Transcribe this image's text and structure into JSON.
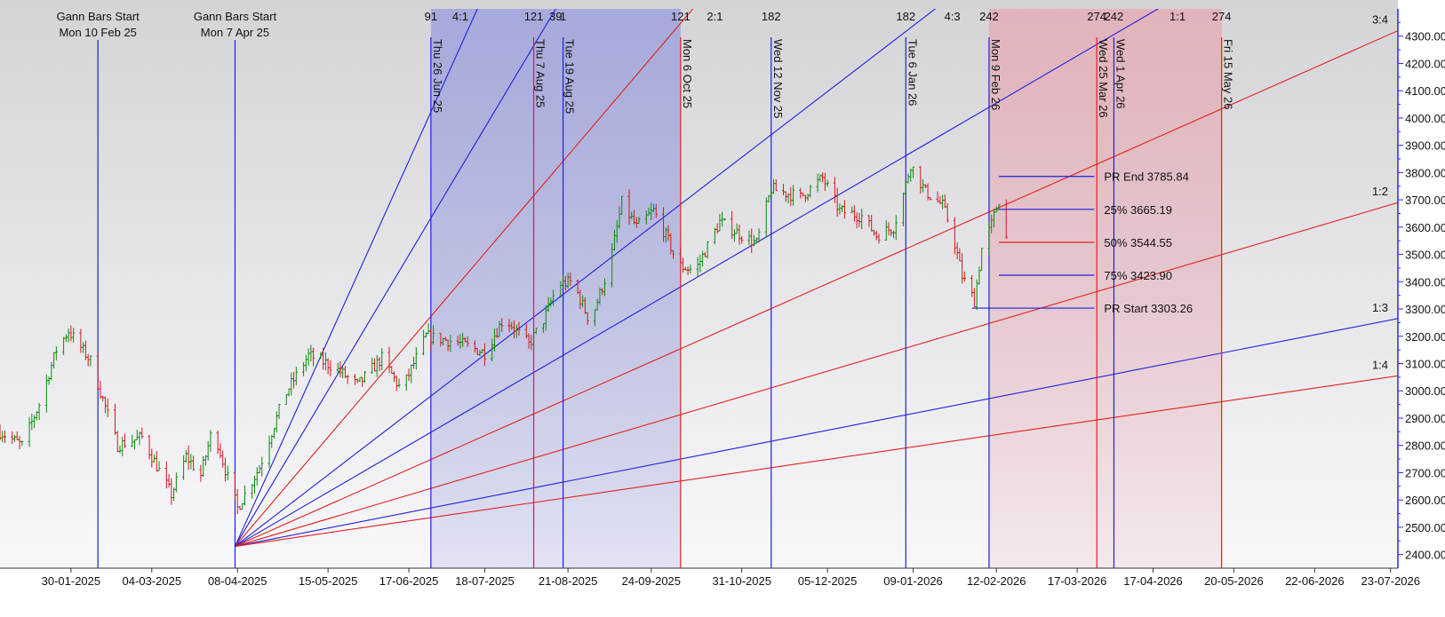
{
  "colors": {
    "background_top": "#d4d4d8",
    "background_bottom": "#f8f8fb",
    "blue": "#1f1fdc",
    "red": "#e0201c",
    "blue_band": "#9ea2dc",
    "red_band": "#e6aab4",
    "candle_up": "#0c8a0c",
    "candle_down": "#d01818",
    "axis": "#2b2bd6",
    "text": "#111111"
  },
  "chart_data": {
    "type": "candlestick",
    "title": "",
    "y_axis": {
      "position": "right",
      "min": 2350,
      "max": 4400,
      "ticks": [
        "2400.00",
        "2500.00",
        "2600.00",
        "2700.00",
        "2800.00",
        "2900.00",
        "3000.00",
        "3100.00",
        "3200.00",
        "3300.00",
        "3400.00",
        "3500.00",
        "3600.00",
        "3700.00",
        "3800.00",
        "3900.00",
        "4000.00",
        "4100.00",
        "4200.00",
        "4300.00"
      ]
    },
    "x_axis": {
      "start": "2025-01-01",
      "end": "2026-07-26",
      "tick_labels": [
        {
          "date": "2025-01-30",
          "label": "30-01-2025"
        },
        {
          "date": "2025-03-04",
          "label": "04-03-2025"
        },
        {
          "date": "2025-04-08",
          "label": "08-04-2025"
        },
        {
          "date": "2025-05-15",
          "label": "15-05-2025"
        },
        {
          "date": "2025-06-17",
          "label": "17-06-2025"
        },
        {
          "date": "2025-07-18",
          "label": "18-07-2025"
        },
        {
          "date": "2025-08-21",
          "label": "21-08-2025"
        },
        {
          "date": "2025-09-24",
          "label": "24-09-2025"
        },
        {
          "date": "2025-10-31",
          "label": "31-10-2025"
        },
        {
          "date": "2025-12-05",
          "label": "05-12-2025"
        },
        {
          "date": "2026-01-09",
          "label": "09-01-2026"
        },
        {
          "date": "2026-02-12",
          "label": "12-02-2026"
        },
        {
          "date": "2026-03-17",
          "label": "17-03-2026"
        },
        {
          "date": "2026-04-17",
          "label": "17-04-2026"
        },
        {
          "date": "2026-05-20",
          "label": "20-05-2026"
        },
        {
          "date": "2026-06-22",
          "label": "22-06-2026"
        },
        {
          "date": "2026-07-23",
          "label": "23-07-2026"
        }
      ]
    },
    "price_path": [
      {
        "date": "2025-01-01",
        "price": 2850
      },
      {
        "date": "2025-01-10",
        "price": 2800
      },
      {
        "date": "2025-01-17",
        "price": 2950
      },
      {
        "date": "2025-01-24",
        "price": 3150
      },
      {
        "date": "2025-01-29",
        "price": 3220
      },
      {
        "date": "2025-02-07",
        "price": 3110
      },
      {
        "date": "2025-02-18",
        "price": 2800
      },
      {
        "date": "2025-02-28",
        "price": 2830
      },
      {
        "date": "2025-03-12",
        "price": 2620
      },
      {
        "date": "2025-03-18",
        "price": 2760
      },
      {
        "date": "2025-03-24",
        "price": 2690
      },
      {
        "date": "2025-03-29",
        "price": 2870
      },
      {
        "date": "2025-04-04",
        "price": 2680
      },
      {
        "date": "2025-04-08",
        "price": 2570
      },
      {
        "date": "2025-04-17",
        "price": 2720
      },
      {
        "date": "2025-04-27",
        "price": 2980
      },
      {
        "date": "2025-05-07",
        "price": 3130
      },
      {
        "date": "2025-05-17",
        "price": 3090
      },
      {
        "date": "2025-05-27",
        "price": 3020
      },
      {
        "date": "2025-06-06",
        "price": 3120
      },
      {
        "date": "2025-06-14",
        "price": 3000
      },
      {
        "date": "2025-06-24",
        "price": 3200
      },
      {
        "date": "2025-07-06",
        "price": 3180
      },
      {
        "date": "2025-07-18",
        "price": 3140
      },
      {
        "date": "2025-07-26",
        "price": 3270
      },
      {
        "date": "2025-08-05",
        "price": 3170
      },
      {
        "date": "2025-08-11",
        "price": 3260
      },
      {
        "date": "2025-08-17",
        "price": 3390
      },
      {
        "date": "2025-08-23",
        "price": 3400
      },
      {
        "date": "2025-08-30",
        "price": 3250
      },
      {
        "date": "2025-09-07",
        "price": 3460
      },
      {
        "date": "2025-09-12",
        "price": 3690
      },
      {
        "date": "2025-09-18",
        "price": 3600
      },
      {
        "date": "2025-09-25",
        "price": 3660
      },
      {
        "date": "2025-10-01",
        "price": 3550
      },
      {
        "date": "2025-10-05",
        "price": 3460
      },
      {
        "date": "2025-10-12",
        "price": 3440
      },
      {
        "date": "2025-10-22",
        "price": 3620
      },
      {
        "date": "2025-10-31",
        "price": 3570
      },
      {
        "date": "2025-11-06",
        "price": 3540
      },
      {
        "date": "2025-11-12",
        "price": 3740
      },
      {
        "date": "2025-11-24",
        "price": 3710
      },
      {
        "date": "2025-12-03",
        "price": 3780
      },
      {
        "date": "2025-12-10",
        "price": 3660
      },
      {
        "date": "2025-12-19",
        "price": 3640
      },
      {
        "date": "2025-12-25",
        "price": 3570
      },
      {
        "date": "2026-01-01",
        "price": 3600
      },
      {
        "date": "2026-01-05",
        "price": 3720
      },
      {
        "date": "2026-01-08",
        "price": 3830
      },
      {
        "date": "2026-01-14",
        "price": 3730
      },
      {
        "date": "2026-01-21",
        "price": 3680
      },
      {
        "date": "2026-01-25",
        "price": 3580
      },
      {
        "date": "2026-01-29",
        "price": 3420
      },
      {
        "date": "2026-02-03",
        "price": 3330
      },
      {
        "date": "2026-02-06",
        "price": 3520
      },
      {
        "date": "2026-02-10",
        "price": 3610
      },
      {
        "date": "2026-02-13",
        "price": 3700
      },
      {
        "date": "2026-02-16",
        "price": 3560
      }
    ],
    "vertical_lines": [
      {
        "date": "2025-02-10",
        "color": "blue",
        "label": "",
        "header": [
          "Gann Bars Start",
          "Mon 10 Feb 25"
        ]
      },
      {
        "date": "2025-04-07",
        "color": "blue",
        "label": "",
        "header": [
          "Gann Bars Start",
          "Mon 7 Apr 25"
        ]
      },
      {
        "date": "2025-06-26",
        "color": "blue",
        "label": "Thu 26 Jun 25"
      },
      {
        "date": "2025-08-07",
        "color": "red",
        "label": "Thu 7 Aug 25"
      },
      {
        "date": "2025-08-19",
        "color": "blue",
        "label": "Tue 19 Aug 25"
      },
      {
        "date": "2025-10-06",
        "color": "red",
        "label": "Mon 6 Oct 25"
      },
      {
        "date": "2025-11-12",
        "color": "blue",
        "label": "Wed 12 Nov 25"
      },
      {
        "date": "2026-01-06",
        "color": "blue",
        "label": "Tue 6 Jan 26"
      },
      {
        "date": "2026-02-09",
        "color": "blue",
        "label": "Mon 9 Feb 26"
      },
      {
        "date": "2026-03-25",
        "color": "red",
        "label": "Wed 25 Mar 26"
      },
      {
        "date": "2026-04-01",
        "color": "blue",
        "label": "Wed 1 Apr 26"
      },
      {
        "date": "2026-05-15",
        "color": "red",
        "label": "Fri 15 May 26"
      }
    ],
    "shaded_regions": [
      {
        "start": "2025-06-26",
        "end": "2025-10-06",
        "color": "blue_band"
      },
      {
        "start": "2026-02-09",
        "end": "2026-05-15",
        "color": "red_band"
      }
    ],
    "top_labels": [
      {
        "date": "2025-06-26",
        "text": "91"
      },
      {
        "date": "2025-07-08",
        "text": "4:1"
      },
      {
        "date": "2025-08-07",
        "text": "121"
      },
      {
        "date": "2025-08-16",
        "text": "39"
      },
      {
        "date": "2025-08-19",
        "text": "1"
      },
      {
        "date": "2025-10-06",
        "text": "121"
      },
      {
        "date": "2025-10-20",
        "text": "2:1"
      },
      {
        "date": "2025-11-12",
        "text": "182"
      },
      {
        "date": "2026-01-06",
        "text": "182"
      },
      {
        "date": "2026-01-25",
        "text": "4:3"
      },
      {
        "date": "2026-02-09",
        "text": "242"
      },
      {
        "date": "2026-03-25",
        "text": "274"
      },
      {
        "date": "2026-04-01",
        "text": "242"
      },
      {
        "date": "2026-04-27",
        "text": "1:1"
      },
      {
        "date": "2026-05-15",
        "text": "274"
      }
    ],
    "gann_fan": {
      "origin": {
        "date": "2025-04-07",
        "price": 2430
      },
      "rays": [
        {
          "color": "blue",
          "through": {
            "date": "2025-07-15",
            "price": 4400
          },
          "label": ""
        },
        {
          "color": "blue",
          "through": {
            "date": "2025-08-16",
            "price": 4400
          },
          "label": ""
        },
        {
          "color": "red",
          "through": {
            "date": "2025-10-11",
            "price": 4400
          },
          "label": ""
        },
        {
          "color": "blue",
          "through": {
            "date": "2026-01-18",
            "price": 4400
          },
          "label": ""
        },
        {
          "color": "blue",
          "through": {
            "date": "2026-04-19",
            "price": 4400
          },
          "label": ""
        },
        {
          "color": "red",
          "through": {
            "date": "2026-07-26",
            "price": 4320
          },
          "label": "3:4"
        },
        {
          "color": "red",
          "through": {
            "date": "2026-07-26",
            "price": 3690
          },
          "label": "1:2"
        },
        {
          "color": "blue",
          "through": {
            "date": "2026-07-26",
            "price": 3265
          },
          "label": "1:3"
        },
        {
          "color": "red",
          "through": {
            "date": "2026-07-26",
            "price": 3055
          },
          "label": "1:4"
        }
      ]
    },
    "price_levels": [
      {
        "price": 3785.84,
        "label": "PR End 3785.84",
        "color": "blue",
        "start": "2026-02-13",
        "end": "2026-03-24"
      },
      {
        "price": 3665.19,
        "label": "25% 3665.19",
        "color": "blue",
        "start": "2026-02-13",
        "end": "2026-03-24"
      },
      {
        "price": 3544.55,
        "label": "50% 3544.55",
        "color": "red",
        "start": "2026-02-13",
        "end": "2026-03-24"
      },
      {
        "price": 3423.9,
        "label": "75% 3423.90",
        "color": "blue",
        "start": "2026-02-13",
        "end": "2026-03-24"
      },
      {
        "price": 3303.26,
        "label": "PR Start 3303.26",
        "color": "blue",
        "start": "2026-02-02",
        "end": "2026-03-24"
      }
    ]
  }
}
